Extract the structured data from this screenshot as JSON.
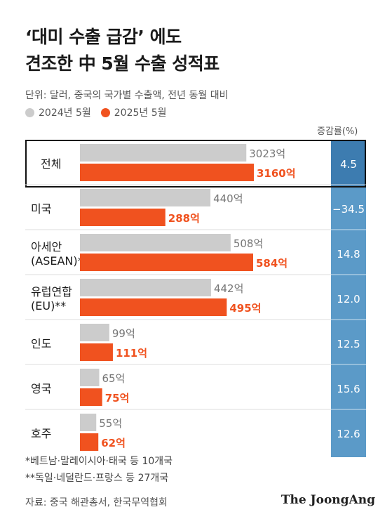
{
  "header": {
    "title_line1": "‘대미 수출 급감’ 에도",
    "title_line2": "견조한 中 5월 수출 성적표",
    "unit_note": "단위: 달러, 중국의 국가별 수출액, 전년 동월 대비"
  },
  "legend": {
    "items": [
      {
        "label": "2024년 5월",
        "color": "#cccccc"
      },
      {
        "label": "2025년 5월",
        "color": "#f0521f"
      }
    ]
  },
  "pct_header": "증감률(%)",
  "chart_data": {
    "type": "bar",
    "orientation": "horizontal",
    "value_unit": "억",
    "categories": [
      {
        "label_lines": [
          "전체"
        ],
        "v2024": 3023,
        "v2025": 3160,
        "v2024_label": "3023억",
        "v2025_label": "3160억",
        "change": "4.5"
      },
      {
        "label_lines": [
          "미국"
        ],
        "v2024": 440,
        "v2025": 288,
        "v2024_label": "440억",
        "v2025_label": "288억",
        "change": "−34.5"
      },
      {
        "label_lines": [
          "아세안",
          "(ASEAN)*"
        ],
        "v2024": 508,
        "v2025": 584,
        "v2024_label": "508억",
        "v2025_label": "584억",
        "change": "14.8"
      },
      {
        "label_lines": [
          "유럽연합",
          "(EU)**"
        ],
        "v2024": 442,
        "v2025": 495,
        "v2024_label": "442억",
        "v2025_label": "495억",
        "change": "12.0"
      },
      {
        "label_lines": [
          "인도"
        ],
        "v2024": 99,
        "v2025": 111,
        "v2024_label": "99억",
        "v2025_label": "111억",
        "change": "12.5"
      },
      {
        "label_lines": [
          "영국"
        ],
        "v2024": 65,
        "v2025": 75,
        "v2024_label": "65억",
        "v2025_label": "75억",
        "change": "15.6"
      },
      {
        "label_lines": [
          "호주"
        ],
        "v2024": 55,
        "v2025": 62,
        "v2024_label": "55억",
        "v2025_label": "62억",
        "change": "12.6"
      }
    ],
    "colors": {
      "y2024": "#cccccc",
      "y2025": "#f0521f",
      "change_col": "#5b9ac8",
      "change_col_total": "#3d7cb0"
    }
  },
  "footnotes": {
    "note1": "*베트남·말레이시아·태국 등 10개국",
    "note2": "**독일·네덜란드·프랑스 등 27개국"
  },
  "source": "자료: 중국 해관총서, 한국무역협회",
  "brand": "The JoongAng"
}
